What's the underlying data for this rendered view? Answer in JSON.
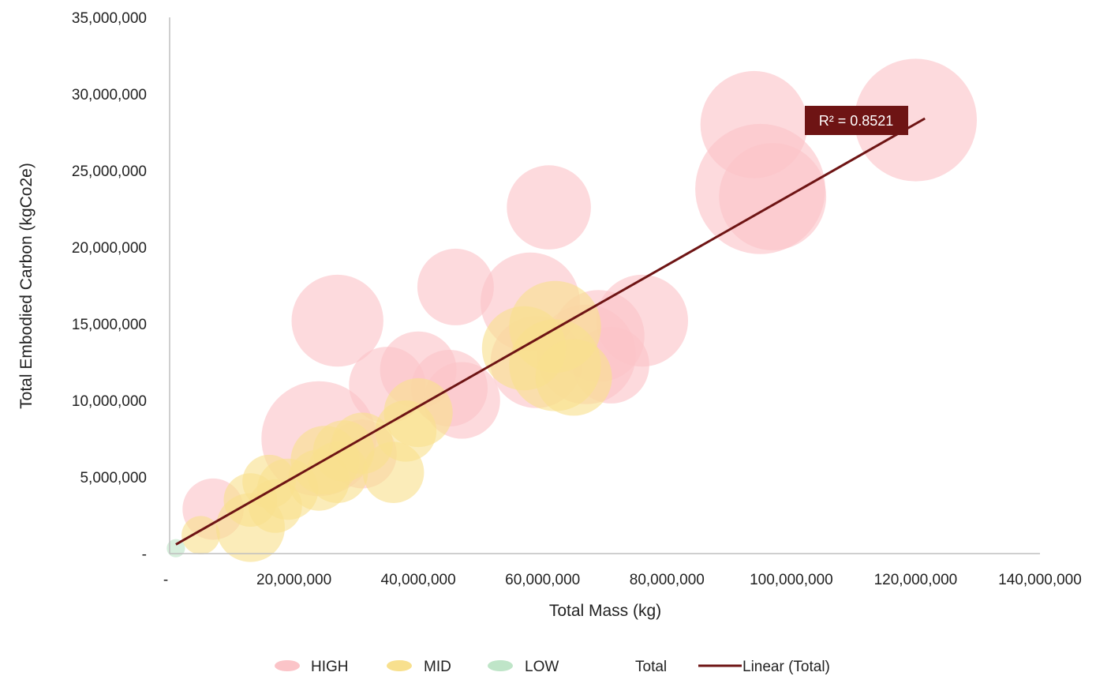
{
  "chart_data": {
    "type": "scatter",
    "bubble": true,
    "xlabel": "Total Mass (kg)",
    "ylabel": "Total Embodied Carbon (kgCo2e)",
    "xlim": [
      0,
      140000000
    ],
    "ylim": [
      0,
      35000000
    ],
    "x_ticks": [
      "-",
      "20,000,000",
      "40,000,000",
      "60,000,000",
      "80,000,000",
      "100,000,000",
      "120,000,000",
      "140,000,000"
    ],
    "y_ticks": [
      "-",
      "5,000,000",
      "10,000,000",
      "15,000,000",
      "20,000,000",
      "25,000,000",
      "30,000,000",
      "35,000,000"
    ],
    "grid": false,
    "legend_position": "bottom",
    "colors": {
      "HIGH": "#fbc4c8",
      "MID": "#f8e08e",
      "LOW": "#bfe5c8",
      "trendline": "#6e1414",
      "r2_box": "#6e1414"
    },
    "series": [
      {
        "name": "HIGH",
        "points": [
          [
            7000000,
            2900000,
            4
          ],
          [
            24000000,
            7500000,
            7.5
          ],
          [
            27000000,
            15200000,
            6
          ],
          [
            31000000,
            6500000,
            4.5
          ],
          [
            35000000,
            11000000,
            5
          ],
          [
            40000000,
            12000000,
            5
          ],
          [
            45000000,
            10800000,
            5
          ],
          [
            46000000,
            17400000,
            5
          ],
          [
            47000000,
            10000000,
            5
          ],
          [
            58000000,
            16400000,
            6.5
          ],
          [
            59000000,
            12500000,
            6
          ],
          [
            61000000,
            22600000,
            5.5
          ],
          [
            67000000,
            13000000,
            6.5
          ],
          [
            69000000,
            14200000,
            6
          ],
          [
            71000000,
            12300000,
            5
          ],
          [
            76000000,
            15200000,
            6
          ],
          [
            94000000,
            28000000,
            7
          ],
          [
            95000000,
            23800000,
            8.5
          ],
          [
            97000000,
            23300000,
            7
          ],
          [
            120000000,
            28300000,
            8
          ]
        ]
      },
      {
        "name": "MID",
        "points": [
          [
            5000000,
            1200000,
            2.5
          ],
          [
            13000000,
            1700000,
            4.5
          ],
          [
            13000000,
            3500000,
            3.5
          ],
          [
            16000000,
            4700000,
            3.5
          ],
          [
            17000000,
            3100000,
            3.5
          ],
          [
            19000000,
            4200000,
            4
          ],
          [
            24000000,
            4800000,
            4
          ],
          [
            25000000,
            6100000,
            4.5
          ],
          [
            27000000,
            5300000,
            4
          ],
          [
            28000000,
            6700000,
            4
          ],
          [
            31000000,
            7200000,
            4
          ],
          [
            36000000,
            5300000,
            4
          ],
          [
            38000000,
            8000000,
            4
          ],
          [
            40000000,
            9200000,
            4.5
          ],
          [
            57000000,
            13400000,
            5.5
          ],
          [
            62000000,
            14800000,
            6
          ],
          [
            62000000,
            12300000,
            6
          ],
          [
            65000000,
            11500000,
            5
          ]
        ]
      },
      {
        "name": "LOW",
        "points": [
          [
            1000000,
            350000,
            1.2
          ]
        ]
      }
    ],
    "trendline": {
      "name": "Linear (Total)",
      "x": [
        1000000,
        121500000
      ],
      "y": [
        600000,
        28400000
      ],
      "r2_label": "R² = 0.8521"
    },
    "legend": [
      "HIGH",
      "MID",
      "LOW",
      "Total",
      "Linear (Total)"
    ]
  }
}
